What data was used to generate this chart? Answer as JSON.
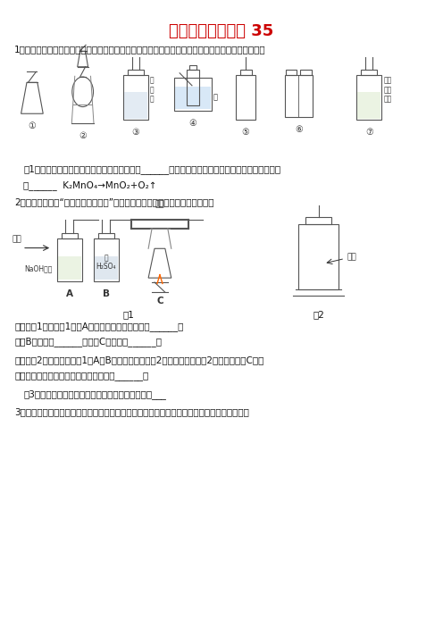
{
  "title": "气体的净化和除杂 35",
  "title_color": "#cc0000",
  "title_fontsize": 13,
  "bg_color": "#ffffff",
  "text_color": "#000000",
  "q1": "1、通过一年的化学学习，你已经掌握了实验室制取气体的有关规律，请你结合下列装置图回答问题：",
  "q1_sub1": "（1）用高锴酸钟制取氧气应选用的发生装置是______（填序号，下同），写出该反应的化学方程式",
  "q1_sub1b": "是______  K₂MnO₄→MnO₂+O₂↑",
  "q2": "2、某学习小组将“从空气中制取氮气”作为研究课题，以下是他们的实验方案：",
  "fig1_label": "图1",
  "fig2_label": "图2",
  "q2_fa1_1": "方案一（1）写出图1装置A中发生反应的化学方程式______；",
  "q2_fa1_2": "装置B的作用是______，装置C的作用是______。",
  "q2_fa2_1": "方案二（2）将空气通过图1中A、B装置后，收集于图2的广口炓中，用图2装置代替装置C进行",
  "q2_fa2_2": "实验，实验中用红磷而不用木炭的原因是______；",
  "q2_fa2_3": "（3）此法得到的氮气不纯，请你分析可能的原因是___",
  "q3": "3、为研究二氧化碳的性质，某同学在实验室采用如图所示装置实验时，接触到下面一些问题："
}
